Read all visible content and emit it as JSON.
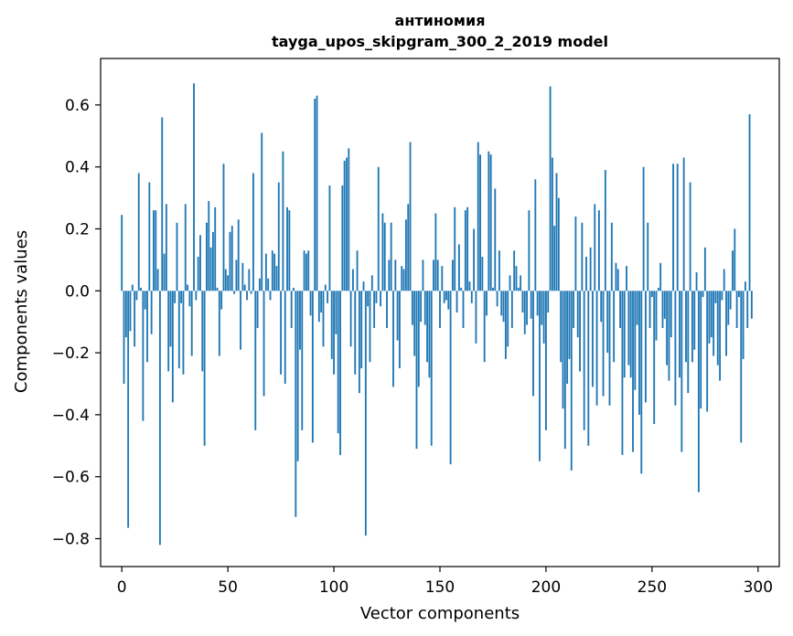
{
  "chart_data": {
    "type": "bar",
    "title": "антиномия",
    "subtitle": "tayga_upos_skipgram_300_2_2019 model",
    "xlabel": "Vector components",
    "ylabel": "Components values",
    "xlim": [
      -10,
      310
    ],
    "ylim": [
      -0.89,
      0.75
    ],
    "xticks": [
      0,
      50,
      100,
      150,
      200,
      250,
      300
    ],
    "xtick_labels": [
      "0",
      "50",
      "100",
      "150",
      "200",
      "250",
      "300"
    ],
    "yticks": [
      -0.8,
      -0.6,
      -0.4,
      -0.2,
      0.0,
      0.2,
      0.4,
      0.6
    ],
    "ytick_labels": [
      "−0.8",
      "−0.6",
      "−0.4",
      "−0.2",
      "0.0",
      "0.2",
      "0.4",
      "0.6"
    ],
    "grid": false,
    "bar_color": "#1f77b4",
    "series": [
      {
        "values": [
          0.245,
          -0.3,
          -0.15,
          -0.765,
          -0.13,
          0.02,
          -0.18,
          -0.03,
          0.38,
          0.01,
          -0.42,
          -0.06,
          -0.23,
          0.35,
          -0.14,
          0.26,
          0.26,
          0.07,
          -0.82,
          0.56,
          0.12,
          0.28,
          -0.26,
          -0.18,
          -0.36,
          -0.04,
          0.22,
          -0.25,
          -0.04,
          -0.27,
          0.28,
          0.02,
          -0.05,
          -0.21,
          0.67,
          -0.03,
          0.11,
          0.18,
          -0.26,
          -0.5,
          0.22,
          0.29,
          0.14,
          0.19,
          0.27,
          0.01,
          -0.21,
          -0.06,
          0.41,
          0.07,
          0.05,
          0.19,
          0.21,
          -0.01,
          0.1,
          0.23,
          -0.19,
          0.09,
          0.02,
          -0.03,
          0.07,
          -0.01,
          0.38,
          -0.45,
          -0.12,
          0.04,
          0.51,
          -0.34,
          0.12,
          0.04,
          -0.03,
          0.13,
          0.12,
          0.08,
          0.35,
          -0.27,
          0.45,
          -0.3,
          0.27,
          0.26,
          -0.12,
          0.01,
          -0.73,
          -0.55,
          -0.19,
          -0.45,
          0.13,
          0.12,
          0.13,
          -0.08,
          -0.49,
          0.62,
          0.63,
          -0.1,
          -0.07,
          -0.18,
          0.02,
          -0.04,
          0.34,
          -0.22,
          -0.27,
          -0.14,
          -0.46,
          -0.53,
          0.34,
          0.42,
          0.43,
          0.46,
          -0.18,
          0.07,
          -0.27,
          0.13,
          -0.33,
          -0.25,
          0.03,
          -0.79,
          -0.05,
          -0.23,
          0.05,
          -0.12,
          -0.04,
          0.4,
          -0.05,
          0.25,
          0.22,
          -0.12,
          0.1,
          0.22,
          -0.31,
          0.1,
          -0.16,
          -0.25,
          0.08,
          0.07,
          0.23,
          0.28,
          0.48,
          -0.11,
          -0.21,
          -0.51,
          -0.31,
          -0.1,
          0.1,
          -0.11,
          -0.23,
          -0.28,
          -0.5,
          0.1,
          0.25,
          0.1,
          -0.12,
          0.08,
          -0.04,
          -0.03,
          -0.06,
          -0.56,
          0.1,
          0.27,
          -0.07,
          0.15,
          0.01,
          -0.12,
          0.26,
          0.27,
          0.03,
          -0.04,
          0.2,
          -0.17,
          0.48,
          0.44,
          0.11,
          -0.23,
          -0.08,
          0.45,
          0.44,
          0.01,
          0.33,
          -0.05,
          0.13,
          -0.08,
          -0.1,
          -0.22,
          -0.18,
          0.05,
          -0.12,
          0.13,
          0.08,
          0.01,
          0.05,
          -0.07,
          -0.14,
          -0.11,
          0.26,
          -0.09,
          -0.34,
          0.36,
          -0.08,
          -0.55,
          -0.11,
          -0.17,
          -0.45,
          -0.07,
          0.66,
          0.43,
          0.21,
          0.38,
          0.3,
          -0.23,
          -0.38,
          -0.51,
          -0.3,
          -0.22,
          -0.58,
          -0.12,
          0.24,
          -0.15,
          -0.26,
          0.22,
          -0.45,
          0.11,
          -0.5,
          0.14,
          -0.31,
          0.28,
          -0.37,
          0.26,
          -0.1,
          -0.34,
          0.39,
          -0.2,
          -0.37,
          0.22,
          -0.23,
          0.09,
          0.07,
          -0.12,
          -0.53,
          -0.28,
          0.08,
          -0.24,
          -0.28,
          -0.52,
          -0.32,
          -0.11,
          -0.4,
          -0.59,
          0.4,
          -0.36,
          0.22,
          -0.12,
          -0.02,
          -0.43,
          -0.16,
          0.01,
          0.09,
          -0.12,
          -0.09,
          -0.24,
          -0.29,
          -0.15,
          0.41,
          -0.37,
          0.41,
          -0.28,
          -0.52,
          0.43,
          -0.23,
          -0.33,
          0.35,
          -0.23,
          -0.19,
          0.06,
          -0.65,
          -0.38,
          -0.02,
          0.14,
          -0.39,
          -0.17,
          -0.15,
          -0.21,
          -0.04,
          -0.24,
          -0.29,
          -0.03,
          0.07,
          -0.21,
          -0.11,
          -0.06,
          0.13,
          0.2,
          -0.12,
          -0.02,
          -0.49,
          -0.22,
          0.03,
          -0.12,
          0.57,
          -0.09,
          0.0,
          0.0
        ]
      }
    ]
  }
}
